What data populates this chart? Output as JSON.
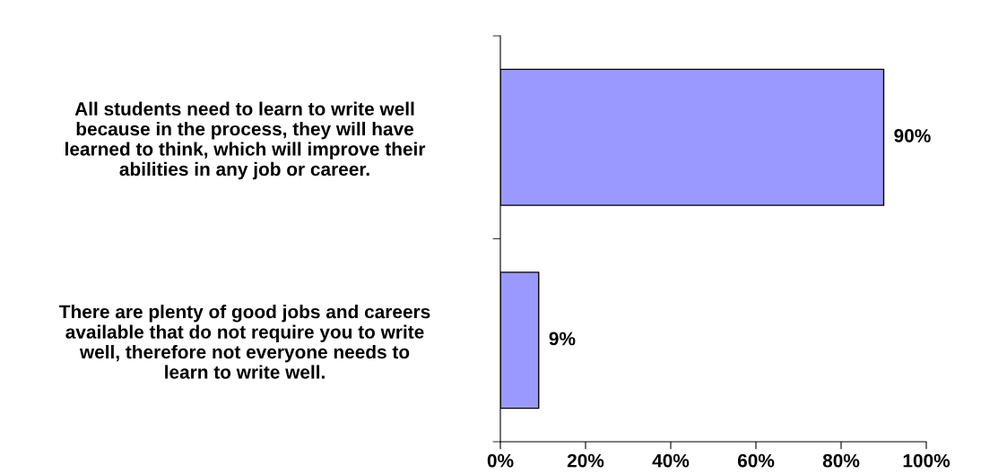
{
  "chart_data": {
    "type": "bar",
    "orientation": "horizontal",
    "categories": [
      "All students need to learn to write well\nbecause in the process, they will have\nlearned to think, which will improve their\nabilities in any job or career.",
      "There are plenty of good jobs and careers\navailable that do not require you to write\nwell, therefore not everyone needs to\nlearn to write well."
    ],
    "values": [
      90,
      9
    ],
    "color": "#9999ff",
    "value_labels": [
      "90%",
      "9%"
    ],
    "xlim": [
      0,
      100
    ],
    "xticks": [
      {
        "value": 0,
        "label": "0%"
      },
      {
        "value": 20,
        "label": "20%"
      },
      {
        "value": 40,
        "label": "40%"
      },
      {
        "value": 60,
        "label": "60%"
      },
      {
        "value": 80,
        "label": "80%"
      },
      {
        "value": 100,
        "label": "100%"
      }
    ],
    "grid": false,
    "legend": false
  }
}
